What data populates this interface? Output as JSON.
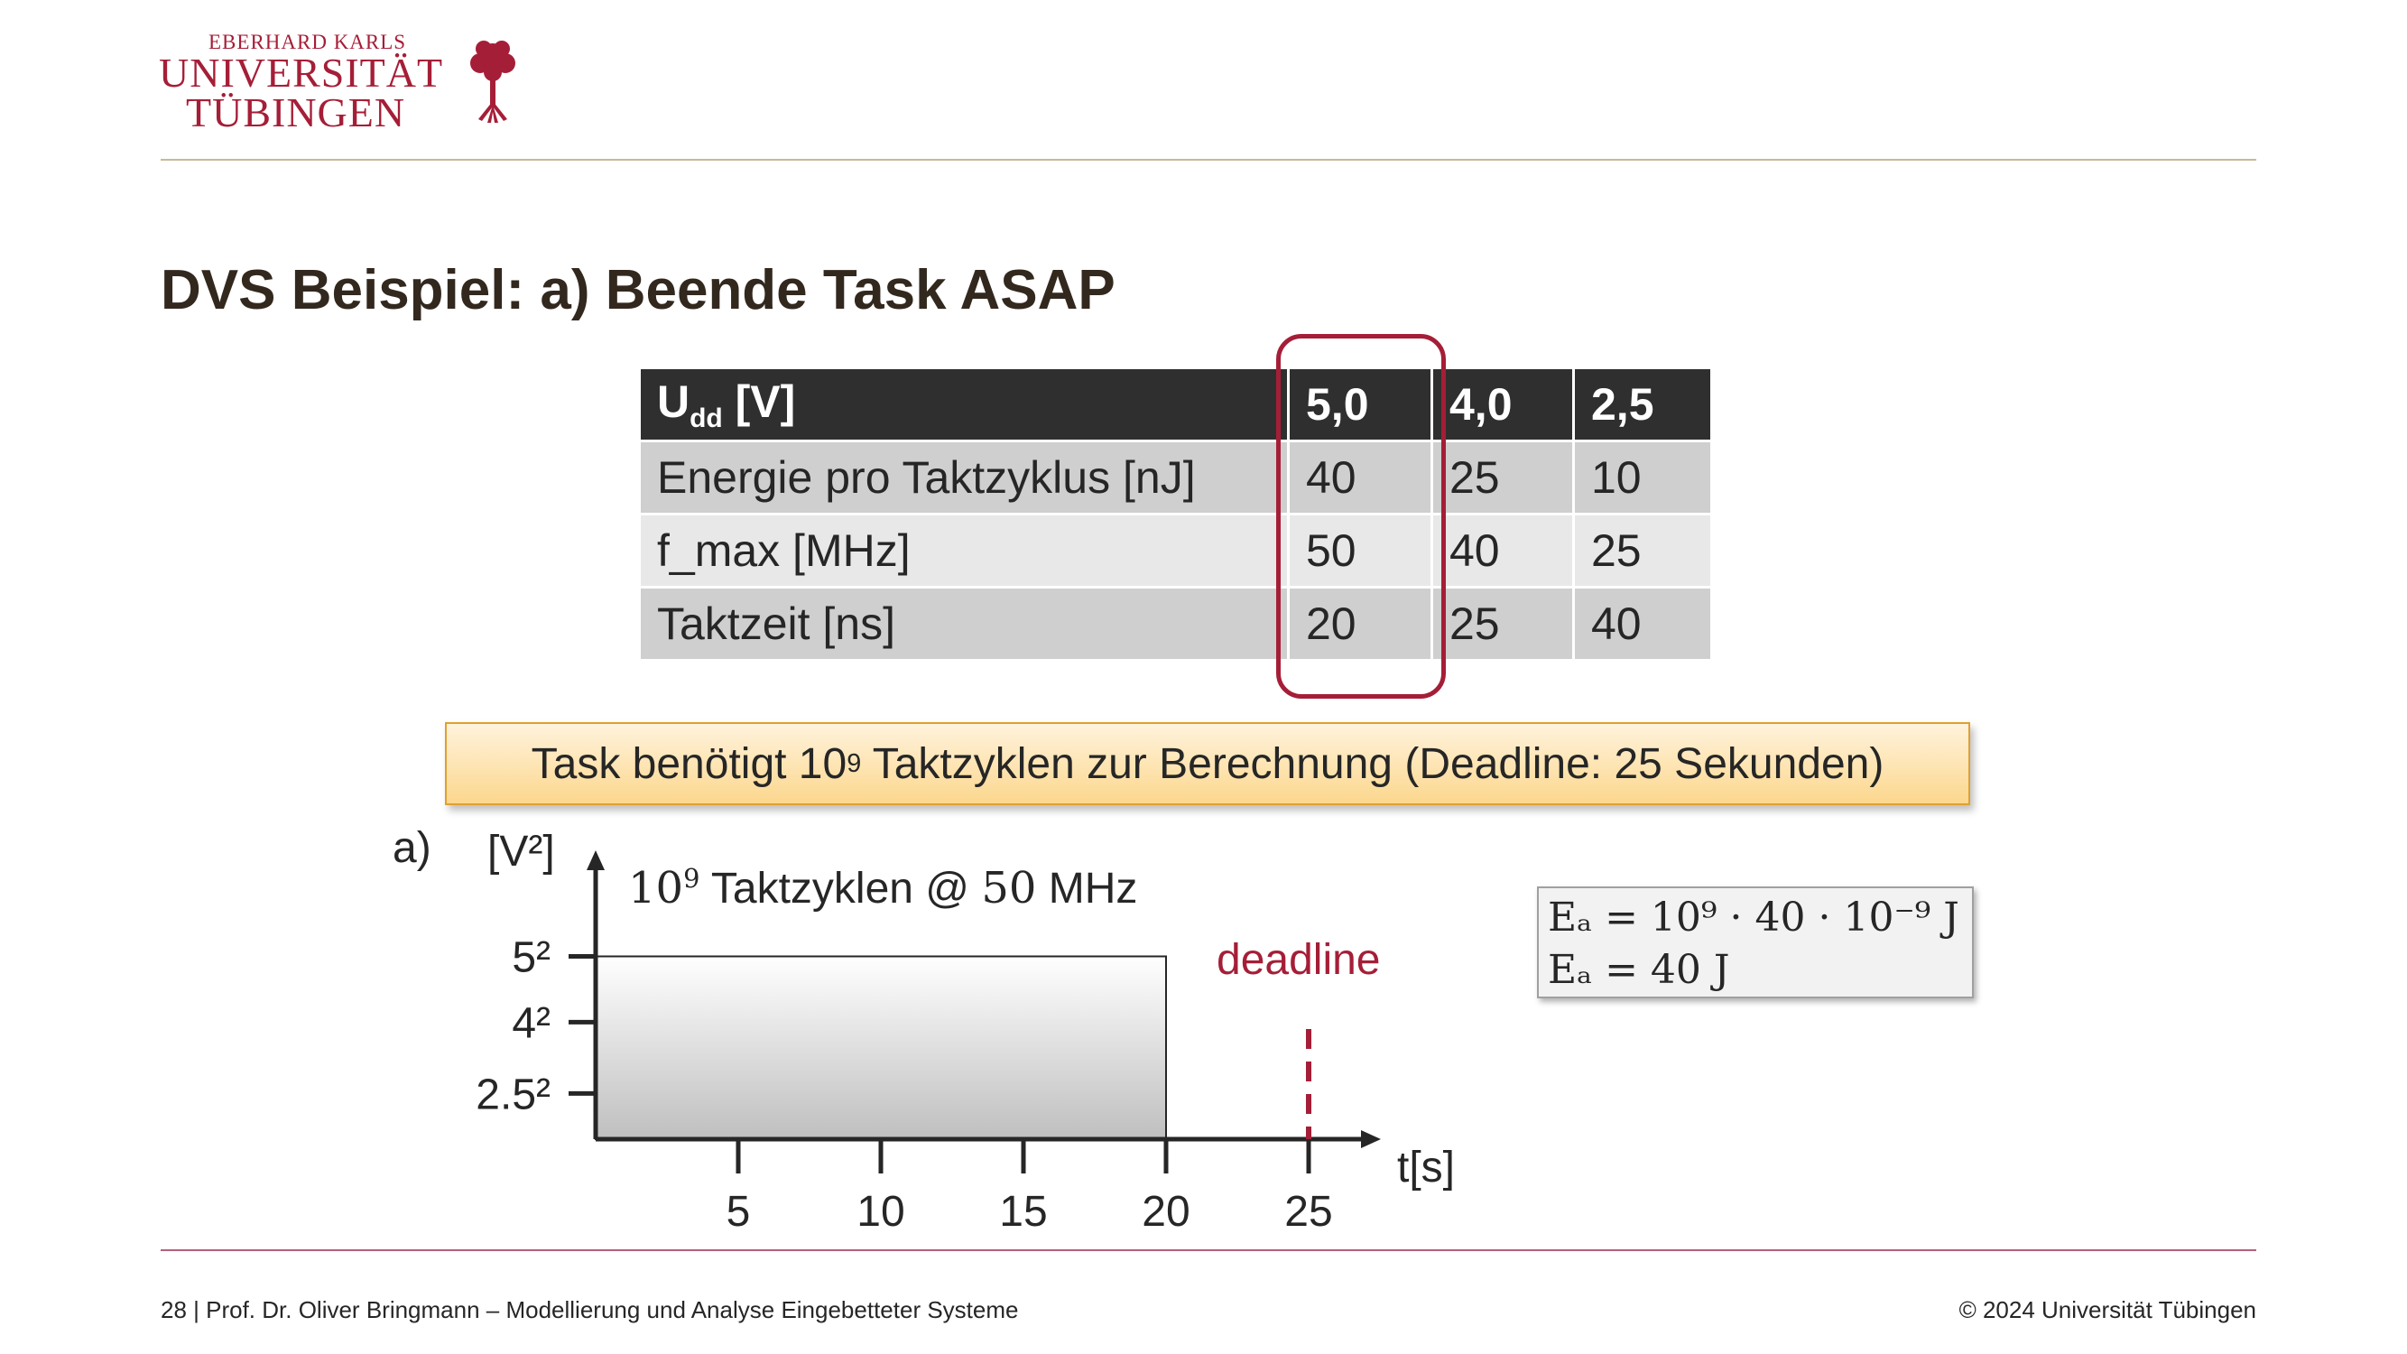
{
  "logo": {
    "line1": "EBERHARD KARLS",
    "line2": "UNIVERSITÄT",
    "line3": "TÜBINGEN",
    "icon": "tree-icon",
    "brand_color": "#a51e37"
  },
  "title": "DVS Beispiel: a) Beende Task ASAP",
  "table": {
    "header": {
      "label_main": "U",
      "label_sub": "dd",
      "label_unit": " [V]",
      "values": [
        "5,0",
        "4,0",
        "2,5"
      ]
    },
    "rows": [
      {
        "label": "Energie pro Taktzyklus [nJ]",
        "values": [
          "40",
          "25",
          "10"
        ]
      },
      {
        "label": "f_max [MHz]",
        "values": [
          "50",
          "40",
          "25"
        ]
      },
      {
        "label": "Taktzeit [ns]",
        "values": [
          "20",
          "25",
          "40"
        ]
      }
    ]
  },
  "banner": {
    "text_before": "Task benötigt 10",
    "exponent": "9",
    "text_after": " Taktzyklen zur Berechnung (Deadline: 25 Sekunden)"
  },
  "chart": {
    "part_label": "a)",
    "ylabel": "[V²]",
    "xlabel": "t[s]",
    "y_ticks": [
      "5²",
      "4²",
      "2.5²"
    ],
    "x_ticks": [
      "5",
      "10",
      "15",
      "20",
      "25"
    ],
    "bar_label_base": "10",
    "bar_label_exp": "9",
    "bar_label_mid": " Taktzyklen @ ",
    "bar_label_num": "50",
    "bar_label_unit": " MHz",
    "deadline_label": "deadline"
  },
  "chart_data": {
    "type": "area",
    "x": [
      0,
      20
    ],
    "y": [
      25,
      25
    ],
    "xlim": [
      0,
      27
    ],
    "ylim": [
      0,
      27
    ],
    "deadline_x": 25
  },
  "formula": {
    "line1": "Eₐ = 10⁹ · 40  · 10⁻⁹ J",
    "line2": "Eₐ = 40 J"
  },
  "footer": {
    "left": "28 | Prof. Dr. Oliver Bringmann – Modellierung und Analyse Eingebetteter Systeme",
    "right": "© 2024 Universität Tübingen"
  }
}
